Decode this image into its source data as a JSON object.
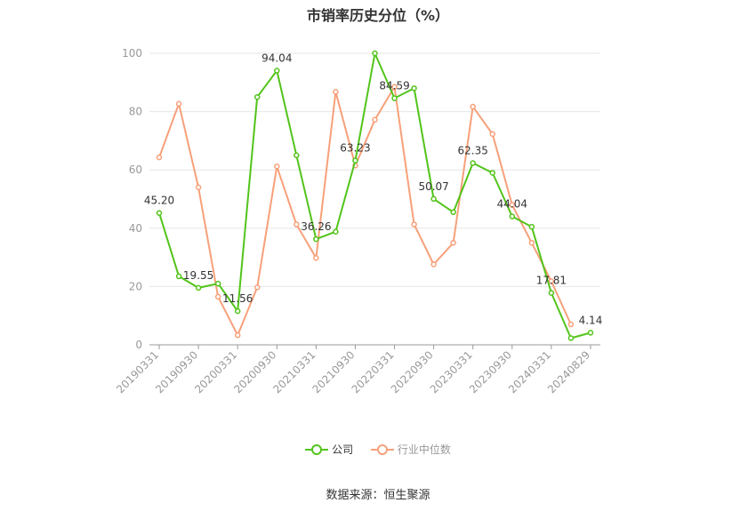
{
  "chart_data": {
    "type": "line",
    "title": "市销率历史分位（%）",
    "x_tick_labels": [
      "20190331",
      "20190930",
      "20200331",
      "20200930",
      "20210331",
      "20210930",
      "20220331",
      "20220930",
      "20230331",
      "20230930",
      "20240331",
      "20240829"
    ],
    "ylim": [
      0,
      100
    ],
    "y_ticks": [
      0,
      20,
      40,
      60,
      80,
      100
    ],
    "grid": true,
    "legend_position": "bottom",
    "series": [
      {
        "name": "公司",
        "color": "#52c41a",
        "values": [
          45.2,
          23.5,
          19.55,
          21.0,
          11.56,
          85.0,
          94.04,
          65.0,
          36.26,
          38.8,
          63.23,
          100.0,
          84.59,
          88.0,
          50.07,
          45.5,
          62.35,
          59.0,
          44.04,
          40.5,
          17.81,
          2.3,
          4.14
        ],
        "labels": {
          "0": "45.20",
          "2": "19.55",
          "4": "11.56",
          "6": "94.04",
          "8": "36.26",
          "10": "63.23",
          "12": "84.59",
          "14": "50.07",
          "16": "62.35",
          "18": "44.04",
          "20": "17.81",
          "22": "4.14"
        }
      },
      {
        "name": "行业中位数",
        "color": "#f7a07a",
        "values": [
          64.3,
          82.7,
          54.0,
          16.5,
          3.3,
          19.7,
          61.2,
          41.3,
          29.8,
          86.8,
          61.5,
          77.2,
          88.5,
          41.3,
          27.6,
          35.0,
          81.7,
          72.3,
          48.0,
          35.0,
          21.8,
          7.0
        ]
      }
    ]
  },
  "source_text": "数据来源：恒生聚源"
}
